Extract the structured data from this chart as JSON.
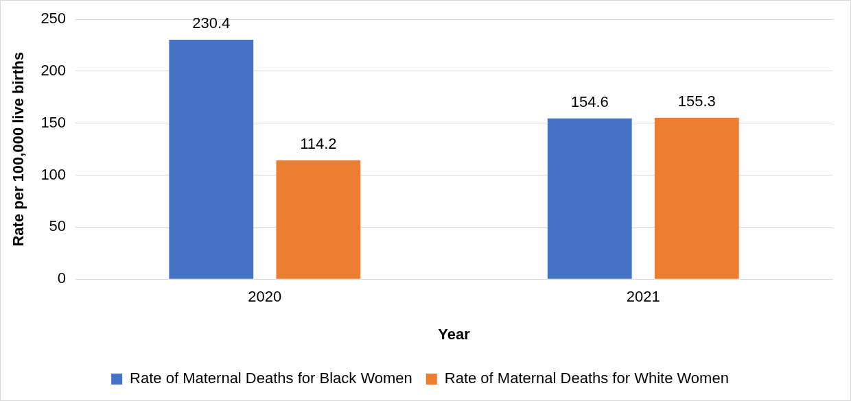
{
  "chart_data": {
    "type": "bar",
    "xlabel": "Year",
    "ylabel": "Rate per 100,000 live births",
    "categories": [
      "2020",
      "2021"
    ],
    "series": [
      {
        "name": "Rate of Maternal Deaths for Black Women",
        "color": "#4472c4",
        "values": [
          230.4,
          154.6
        ]
      },
      {
        "name": "Rate of Maternal Deaths for White Women",
        "color": "#ed7d31",
        "values": [
          114.2,
          155.3
        ]
      }
    ],
    "ylim": [
      0,
      250
    ],
    "yticks": [
      0,
      50,
      100,
      150,
      200,
      250
    ],
    "grid": "y",
    "legend": "bottom",
    "data_labels": true
  }
}
